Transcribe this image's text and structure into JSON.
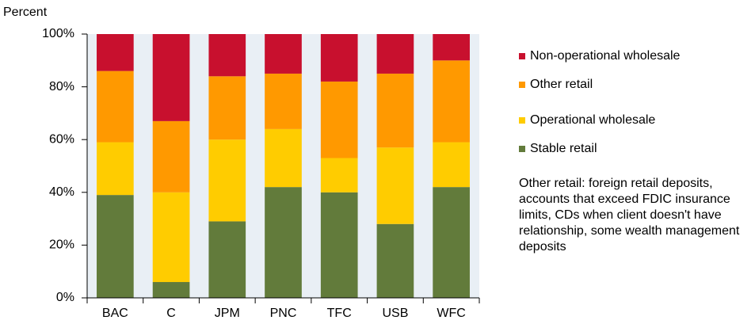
{
  "chart_data": {
    "type": "bar",
    "stacked": true,
    "y_axis_label": "Percent",
    "categories": [
      "BAC",
      "C",
      "JPM",
      "PNC",
      "TFC",
      "USB",
      "WFC"
    ],
    "series": [
      {
        "name": "Stable retail",
        "color": "#627b3b",
        "values": [
          39,
          6,
          29,
          42,
          40,
          28,
          42
        ]
      },
      {
        "name": "Operational wholesale",
        "color": "#ffcc00",
        "values": [
          20,
          34,
          31,
          22,
          13,
          29,
          17
        ]
      },
      {
        "name": "Other retail",
        "color": "#ff9900",
        "values": [
          27,
          27,
          24,
          21,
          29,
          28,
          31
        ]
      },
      {
        "name": "Non-operational wholesale",
        "color": "#c8102e",
        "values": [
          14,
          33,
          16,
          15,
          18,
          15,
          10
        ]
      }
    ],
    "ylim": [
      0,
      100
    ],
    "yticks": [
      {
        "value": 0,
        "label": "0%"
      },
      {
        "value": 20,
        "label": "20%"
      },
      {
        "value": 40,
        "label": "40%"
      },
      {
        "value": 60,
        "label": "60%"
      },
      {
        "value": 80,
        "label": "80%"
      },
      {
        "value": 100,
        "label": "100%"
      }
    ],
    "legend": "right",
    "annotation": "Other retail: foreign retail deposits, accounts that exceed FDIC insurance limits, CDs when client doesn't have relationship, some wealth management deposits"
  }
}
